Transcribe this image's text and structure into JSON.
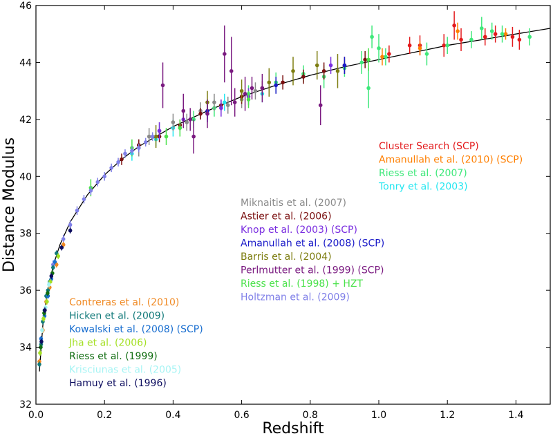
{
  "chart_data": {
    "type": "scatter",
    "title": "",
    "xlabel": "Redshift",
    "ylabel": "Distance Modulus",
    "xlim": [
      0.0,
      1.5
    ],
    "ylim": [
      32,
      46
    ],
    "x_ticks": [
      "0.0",
      "0.2",
      "0.4",
      "0.6",
      "0.8",
      "1.0",
      "1.2",
      "1.4"
    ],
    "y_ticks": [
      "32",
      "34",
      "36",
      "38",
      "40",
      "42",
      "44",
      "46"
    ],
    "grid": false,
    "model_curve": {
      "x": [
        0.01,
        0.02,
        0.03,
        0.05,
        0.07,
        0.1,
        0.15,
        0.2,
        0.25,
        0.3,
        0.4,
        0.5,
        0.6,
        0.7,
        0.8,
        0.9,
        1.0,
        1.1,
        1.2,
        1.3,
        1.4,
        1.5
      ],
      "y": [
        33.15,
        34.75,
        35.7,
        36.85,
        37.6,
        38.4,
        39.35,
        40.05,
        40.6,
        41.05,
        41.75,
        42.3,
        42.8,
        43.2,
        43.55,
        43.85,
        44.1,
        44.35,
        44.6,
        44.8,
        45.0,
        45.2
      ]
    },
    "legend_groups": [
      {
        "placement": "right",
        "entries": [
          {
            "label": "Cluster Search (SCP)",
            "color": "#e31a1c"
          },
          {
            "label": "Amanullah et al. (2010) (SCP)",
            "color": "#ff7f00"
          },
          {
            "label": "Riess et al. (2007)",
            "color": "#3ee87a"
          },
          {
            "label": "Tonry et al. (2003)",
            "color": "#22e6f0"
          }
        ]
      },
      {
        "placement": "center",
        "entries": [
          {
            "label": "Miknaitis et al. (2007)",
            "color": "#8a8a8a"
          },
          {
            "label": "Astier et al. (2006)",
            "color": "#7a0f0f"
          },
          {
            "label": "Knop et al. (2003) (SCP)",
            "color": "#7a2ee0"
          },
          {
            "label": "Amanullah et al. (2008) (SCP)",
            "color": "#1a1ac8"
          },
          {
            "label": "Barris et al. (2004)",
            "color": "#7d7d10"
          },
          {
            "label": "Perlmutter et al. (1999) (SCP)",
            "color": "#7a1a80"
          },
          {
            "label": "Riess et al. (1998) + HZT",
            "color": "#4be24b"
          },
          {
            "label": "Holtzman et al. (2009)",
            "color": "#8080e8"
          }
        ]
      },
      {
        "placement": "lower-left",
        "entries": [
          {
            "label": "Contreras et al. (2010)",
            "color": "#f08a24"
          },
          {
            "label": "Hicken et al. (2009)",
            "color": "#127a7a"
          },
          {
            "label": "Kowalski et al. (2008) (SCP)",
            "color": "#1a6fd0"
          },
          {
            "label": "Jha et al. (2006)",
            "color": "#a4e024"
          },
          {
            "label": "Riess et al. (1999)",
            "color": "#126e12"
          },
          {
            "label": "Krisciunas et al. (2005)",
            "color": "#a6f4f4"
          },
          {
            "label": "Hamuy et al. (1996)",
            "color": "#0c0c5e"
          }
        ]
      }
    ],
    "series": [
      {
        "name": "Cluster Search (SCP)",
        "points": [
          [
            1.03,
            44.3,
            0.3
          ],
          [
            1.09,
            44.6,
            0.3
          ],
          [
            1.12,
            44.6,
            0.35
          ],
          [
            1.19,
            44.6,
            0.4
          ],
          [
            1.22,
            45.3,
            0.5
          ],
          [
            1.24,
            44.8,
            0.4
          ],
          [
            1.31,
            44.9,
            0.3
          ],
          [
            1.34,
            45.0,
            0.3
          ],
          [
            1.39,
            44.9,
            0.35
          ],
          [
            1.41,
            44.8,
            0.35
          ]
        ]
      },
      {
        "name": "Amanullah et al. (2010) (SCP)",
        "points": [
          [
            1.01,
            44.2,
            0.3
          ],
          [
            1.12,
            44.5,
            0.25
          ],
          [
            1.23,
            45.1,
            0.3
          ],
          [
            1.37,
            45.0,
            0.2
          ]
        ]
      },
      {
        "name": "Riess et al. (2007)",
        "points": [
          [
            0.46,
            42.0,
            0.3
          ],
          [
            0.52,
            42.4,
            0.3
          ],
          [
            0.62,
            42.9,
            0.3
          ],
          [
            0.7,
            43.3,
            0.35
          ],
          [
            0.78,
            43.6,
            0.3
          ],
          [
            0.84,
            43.5,
            0.4
          ],
          [
            0.9,
            43.8,
            0.3
          ],
          [
            0.95,
            44.0,
            0.4
          ],
          [
            0.97,
            43.1,
            0.7
          ],
          [
            0.98,
            44.9,
            0.4
          ],
          [
            1.0,
            44.5,
            0.5
          ],
          [
            1.02,
            44.2,
            0.3
          ],
          [
            1.14,
            44.3,
            0.4
          ],
          [
            1.2,
            44.6,
            0.3
          ],
          [
            1.27,
            44.8,
            0.3
          ],
          [
            1.3,
            45.2,
            0.4
          ],
          [
            1.33,
            45.1,
            0.3
          ],
          [
            1.36,
            45.0,
            0.3
          ],
          [
            1.44,
            44.9,
            0.3
          ]
        ]
      },
      {
        "name": "Tonry et al. (2003)",
        "points": [
          [
            0.28,
            40.8,
            0.25
          ],
          [
            0.35,
            41.3,
            0.25
          ],
          [
            0.4,
            41.7,
            0.3
          ],
          [
            0.5,
            42.2,
            0.3
          ],
          [
            0.55,
            42.6,
            0.3
          ],
          [
            0.66,
            42.9,
            0.3
          ]
        ]
      },
      {
        "name": "Miknaitis et al. (2007)",
        "points": [
          [
            0.3,
            41.0,
            0.3
          ],
          [
            0.33,
            41.4,
            0.3
          ],
          [
            0.36,
            41.6,
            0.3
          ],
          [
            0.4,
            41.9,
            0.3
          ],
          [
            0.44,
            41.9,
            0.3
          ],
          [
            0.48,
            42.3,
            0.3
          ],
          [
            0.52,
            42.6,
            0.3
          ],
          [
            0.56,
            42.5,
            0.3
          ],
          [
            0.6,
            42.7,
            0.3
          ],
          [
            0.64,
            43.0,
            0.3
          ]
        ]
      },
      {
        "name": "Astier et al. (2006)",
        "points": [
          [
            0.25,
            40.6,
            0.2
          ],
          [
            0.3,
            41.1,
            0.2
          ],
          [
            0.36,
            41.4,
            0.2
          ],
          [
            0.42,
            41.8,
            0.2
          ],
          [
            0.48,
            42.2,
            0.2
          ],
          [
            0.54,
            42.5,
            0.2
          ],
          [
            0.6,
            42.8,
            0.25
          ],
          [
            0.66,
            43.1,
            0.25
          ],
          [
            0.72,
            43.3,
            0.25
          ],
          [
            0.78,
            43.5,
            0.25
          ],
          [
            0.84,
            43.7,
            0.3
          ],
          [
            0.9,
            43.9,
            0.3
          ],
          [
            0.96,
            44.1,
            0.3
          ]
        ]
      },
      {
        "name": "Knop et al. (2003) (SCP)",
        "points": [
          [
            0.36,
            41.6,
            0.3
          ],
          [
            0.43,
            42.0,
            0.3
          ],
          [
            0.5,
            42.2,
            0.3
          ],
          [
            0.54,
            42.4,
            0.3
          ],
          [
            0.62,
            42.8,
            0.3
          ],
          [
            0.86,
            43.9,
            0.3
          ]
        ]
      },
      {
        "name": "Amanullah et al. (2008) (SCP)",
        "points": [
          [
            0.5,
            42.3,
            0.3
          ],
          [
            0.7,
            43.2,
            0.3
          ],
          [
            0.9,
            43.9,
            0.3
          ]
        ]
      },
      {
        "name": "Barris et al. (2004)",
        "points": [
          [
            0.35,
            41.4,
            0.4
          ],
          [
            0.5,
            42.6,
            0.4
          ],
          [
            0.6,
            43.0,
            0.4
          ],
          [
            0.68,
            43.3,
            0.5
          ],
          [
            0.75,
            43.7,
            0.5
          ],
          [
            0.82,
            43.9,
            0.5
          ],
          [
            0.88,
            43.7,
            0.6
          ]
        ]
      },
      {
        "name": "Perlmutter et al. (1999) (SCP)",
        "points": [
          [
            0.37,
            43.2,
            0.8
          ],
          [
            0.43,
            42.3,
            0.6
          ],
          [
            0.45,
            42.0,
            0.4
          ],
          [
            0.46,
            41.4,
            0.6
          ],
          [
            0.5,
            42.2,
            0.5
          ],
          [
            0.55,
            44.3,
            1.0
          ],
          [
            0.57,
            43.7,
            1.2
          ],
          [
            0.58,
            42.6,
            0.5
          ],
          [
            0.61,
            42.9,
            0.6
          ],
          [
            0.63,
            43.1,
            0.4
          ],
          [
            0.66,
            43.1,
            0.5
          ],
          [
            0.83,
            42.5,
            0.7
          ]
        ]
      },
      {
        "name": "Riess et al. (1998) + HZT",
        "points": [
          [
            0.16,
            39.6,
            0.3
          ],
          [
            0.28,
            41.0,
            0.3
          ],
          [
            0.38,
            41.4,
            0.3
          ],
          [
            0.42,
            41.7,
            0.3
          ],
          [
            0.62,
            42.7,
            0.3
          ],
          [
            0.97,
            44.1,
            0.4
          ]
        ]
      },
      {
        "name": "Holtzman et al. (2009)",
        "points": [
          [
            0.05,
            36.9,
            0.15
          ],
          [
            0.08,
            37.8,
            0.15
          ],
          [
            0.1,
            38.3,
            0.15
          ],
          [
            0.12,
            38.8,
            0.15
          ],
          [
            0.14,
            39.2,
            0.15
          ],
          [
            0.16,
            39.5,
            0.15
          ],
          [
            0.18,
            39.8,
            0.15
          ],
          [
            0.2,
            40.0,
            0.15
          ],
          [
            0.22,
            40.3,
            0.15
          ],
          [
            0.24,
            40.5,
            0.15
          ],
          [
            0.26,
            40.8,
            0.15
          ],
          [
            0.28,
            40.9,
            0.15
          ],
          [
            0.3,
            41.0,
            0.15
          ],
          [
            0.32,
            41.2,
            0.15
          ],
          [
            0.34,
            41.4,
            0.15
          ]
        ]
      },
      {
        "name": "Contreras et al. (2010)",
        "points": [
          [
            0.01,
            33.5,
            0.1
          ],
          [
            0.02,
            34.6,
            0.1
          ],
          [
            0.03,
            35.6,
            0.1
          ],
          [
            0.04,
            36.1,
            0.1
          ],
          [
            0.06,
            36.9,
            0.1
          ],
          [
            0.08,
            37.6,
            0.1
          ]
        ]
      },
      {
        "name": "Hicken et al. (2009)",
        "points": [
          [
            0.01,
            33.4,
            0.1
          ],
          [
            0.015,
            34.1,
            0.1
          ],
          [
            0.02,
            34.9,
            0.1
          ],
          [
            0.025,
            35.3,
            0.1
          ],
          [
            0.03,
            35.8,
            0.1
          ],
          [
            0.035,
            36.0,
            0.1
          ],
          [
            0.04,
            36.3,
            0.1
          ],
          [
            0.05,
            36.8,
            0.1
          ],
          [
            0.06,
            37.3,
            0.1
          ]
        ]
      },
      {
        "name": "Kowalski et al. (2008) (SCP)",
        "points": [
          [
            0.015,
            34.3,
            0.1
          ],
          [
            0.025,
            35.1,
            0.1
          ],
          [
            0.035,
            35.8,
            0.1
          ],
          [
            0.045,
            36.4,
            0.1
          ],
          [
            0.055,
            37.0,
            0.1
          ]
        ]
      },
      {
        "name": "Jha et al. (2006)",
        "points": [
          [
            0.012,
            33.8,
            0.1
          ],
          [
            0.022,
            35.0,
            0.1
          ],
          [
            0.032,
            35.6,
            0.1
          ],
          [
            0.042,
            36.3,
            0.1
          ],
          [
            0.065,
            37.2,
            0.1
          ]
        ]
      },
      {
        "name": "Riess et al. (1999)",
        "points": [
          [
            0.014,
            34.0,
            0.1
          ],
          [
            0.024,
            35.2,
            0.1
          ],
          [
            0.034,
            35.9,
            0.1
          ],
          [
            0.048,
            36.6,
            0.1
          ]
        ]
      },
      {
        "name": "Krisciunas et al. (2005)",
        "points": [
          [
            0.018,
            34.6,
            0.1
          ],
          [
            0.028,
            35.4,
            0.1
          ],
          [
            0.038,
            36.2,
            0.1
          ]
        ]
      },
      {
        "name": "Hamuy et al. (1996)",
        "points": [
          [
            0.016,
            34.2,
            0.1
          ],
          [
            0.026,
            35.3,
            0.1
          ],
          [
            0.045,
            36.5,
            0.1
          ],
          [
            0.075,
            37.5,
            0.1
          ],
          [
            0.1,
            38.1,
            0.1
          ]
        ]
      }
    ]
  }
}
